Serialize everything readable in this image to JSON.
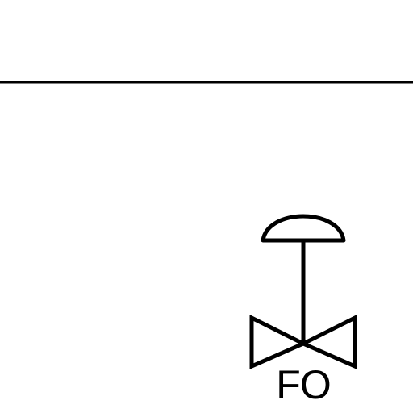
{
  "diagram": {
    "valve": {
      "label": "FO"
    }
  },
  "colors": {
    "stroke": "#000000",
    "background": "#ffffff"
  }
}
